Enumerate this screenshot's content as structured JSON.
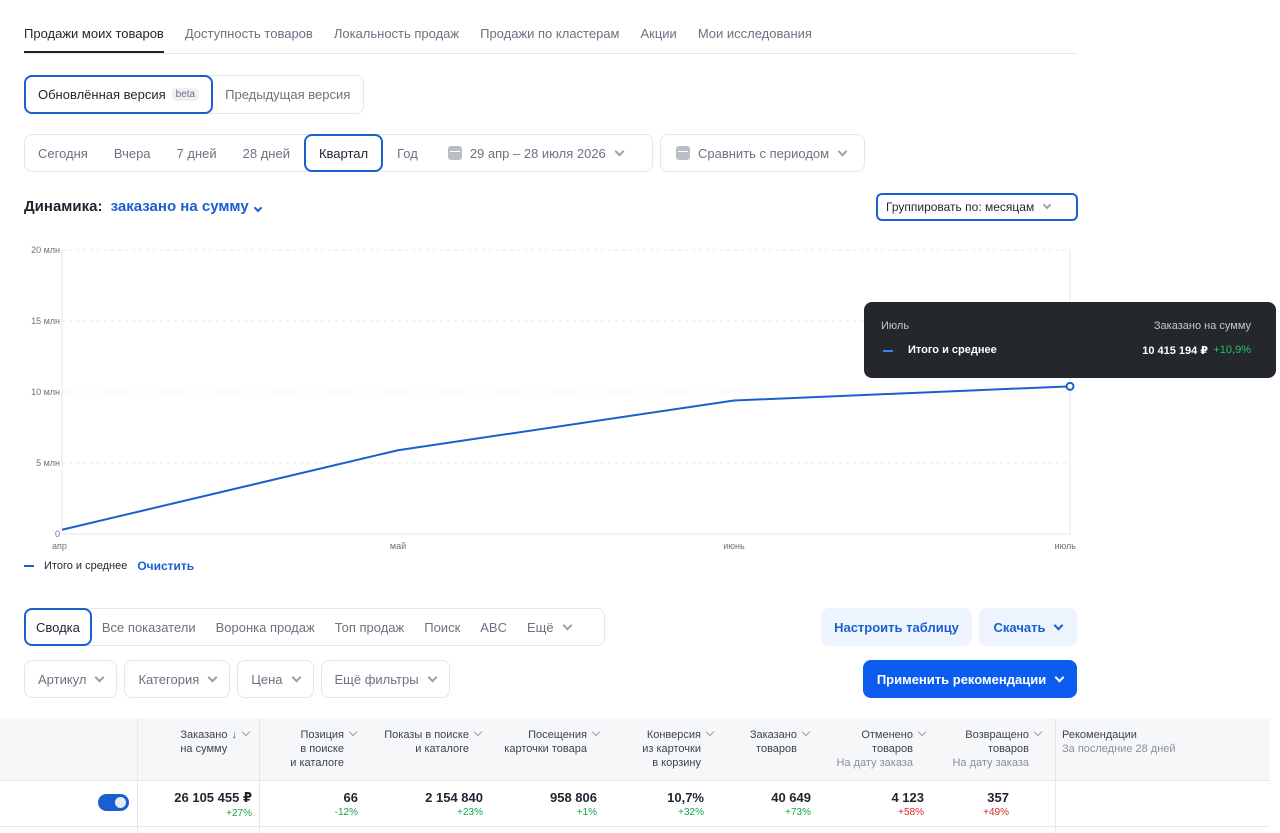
{
  "top_tabs": [
    "Продажи моих товаров",
    "Доступность товаров",
    "Локальность продаж",
    "Продажи по кластерам",
    "Акции",
    "Мои исследования"
  ],
  "version": {
    "new": "Обновлённая версия",
    "beta": "beta",
    "old": "Предыдущая версия"
  },
  "periods": [
    "Сегодня",
    "Вчера",
    "7 дней",
    "28 дней",
    "Квартал",
    "Год"
  ],
  "period_active": "Квартал",
  "date_range": "29 апр – 28 июля 2026",
  "compare": "Сравнить с периодом",
  "dynamics": {
    "label": "Динамика:",
    "metric": "заказано на сумму"
  },
  "group_by": "Группировать по: месяцам",
  "chart_data": {
    "type": "line",
    "categories": [
      "апр",
      "май",
      "июнь",
      "июль"
    ],
    "series": [
      {
        "name": "Итого и среднее",
        "values": [
          0.3,
          5.9,
          9.4,
          10.4
        ]
      }
    ],
    "yticks": [
      "0",
      "5 млн",
      "10 млн",
      "15 млн",
      "20 млн"
    ],
    "ylim": [
      0,
      20
    ],
    "legend": "bottom-left",
    "grid": true
  },
  "tooltip": {
    "month": "Июль",
    "header": "Заказано на сумму",
    "series": "Итого и среднее",
    "value": "10 415 194 ₽",
    "delta": "+10,9%"
  },
  "legend": {
    "series": "Итого и среднее",
    "clear": "Очистить"
  },
  "view_tabs": [
    "Сводка",
    "Все показатели",
    "Воронка продаж",
    "Топ продаж",
    "Поиск",
    "ABC",
    "Ещё"
  ],
  "buttons": {
    "configure": "Настроить таблицу",
    "download": "Скачать",
    "apply": "Применить рекомендации"
  },
  "filters": [
    "Артикул",
    "Категория",
    "Цена",
    "Ещё фильтры"
  ],
  "table": {
    "headers": [
      {
        "l1": "Заказано",
        "l2": "на сумму",
        "sorted": true
      },
      {
        "l1": "Позиция",
        "l2": "в поиске",
        "l3": "и каталоге"
      },
      {
        "l1": "Показы в поиске",
        "l2": "и каталоге"
      },
      {
        "l1": "Посещения",
        "l2": "карточки товара"
      },
      {
        "l1": "Конверсия",
        "l2": "из карточки",
        "l3": "в корзину"
      },
      {
        "l1": "Заказано",
        "l2": "товаров"
      },
      {
        "l1": "Отменено",
        "l2": "товаров",
        "sub": "На дату заказа"
      },
      {
        "l1": "Возвращено",
        "l2": "товаров",
        "sub": "На дату заказа"
      }
    ],
    "rec": {
      "title": "Рекомендации",
      "sub": "За последние 28 дней"
    },
    "row": [
      {
        "v": "26 105 455 ₽",
        "d": "+27%",
        "good": true
      },
      {
        "v": "66",
        "d": "-12%",
        "good": true
      },
      {
        "v": "2 154 840",
        "d": "+23%",
        "good": true
      },
      {
        "v": "958 806",
        "d": "+1%",
        "good": true
      },
      {
        "v": "10,7%",
        "d": "+32%",
        "good": true
      },
      {
        "v": "40 649",
        "d": "+73%",
        "good": true
      },
      {
        "v": "4 123",
        "d": "+58%",
        "good": false
      },
      {
        "v": "357",
        "d": "+49%",
        "good": false
      }
    ]
  }
}
